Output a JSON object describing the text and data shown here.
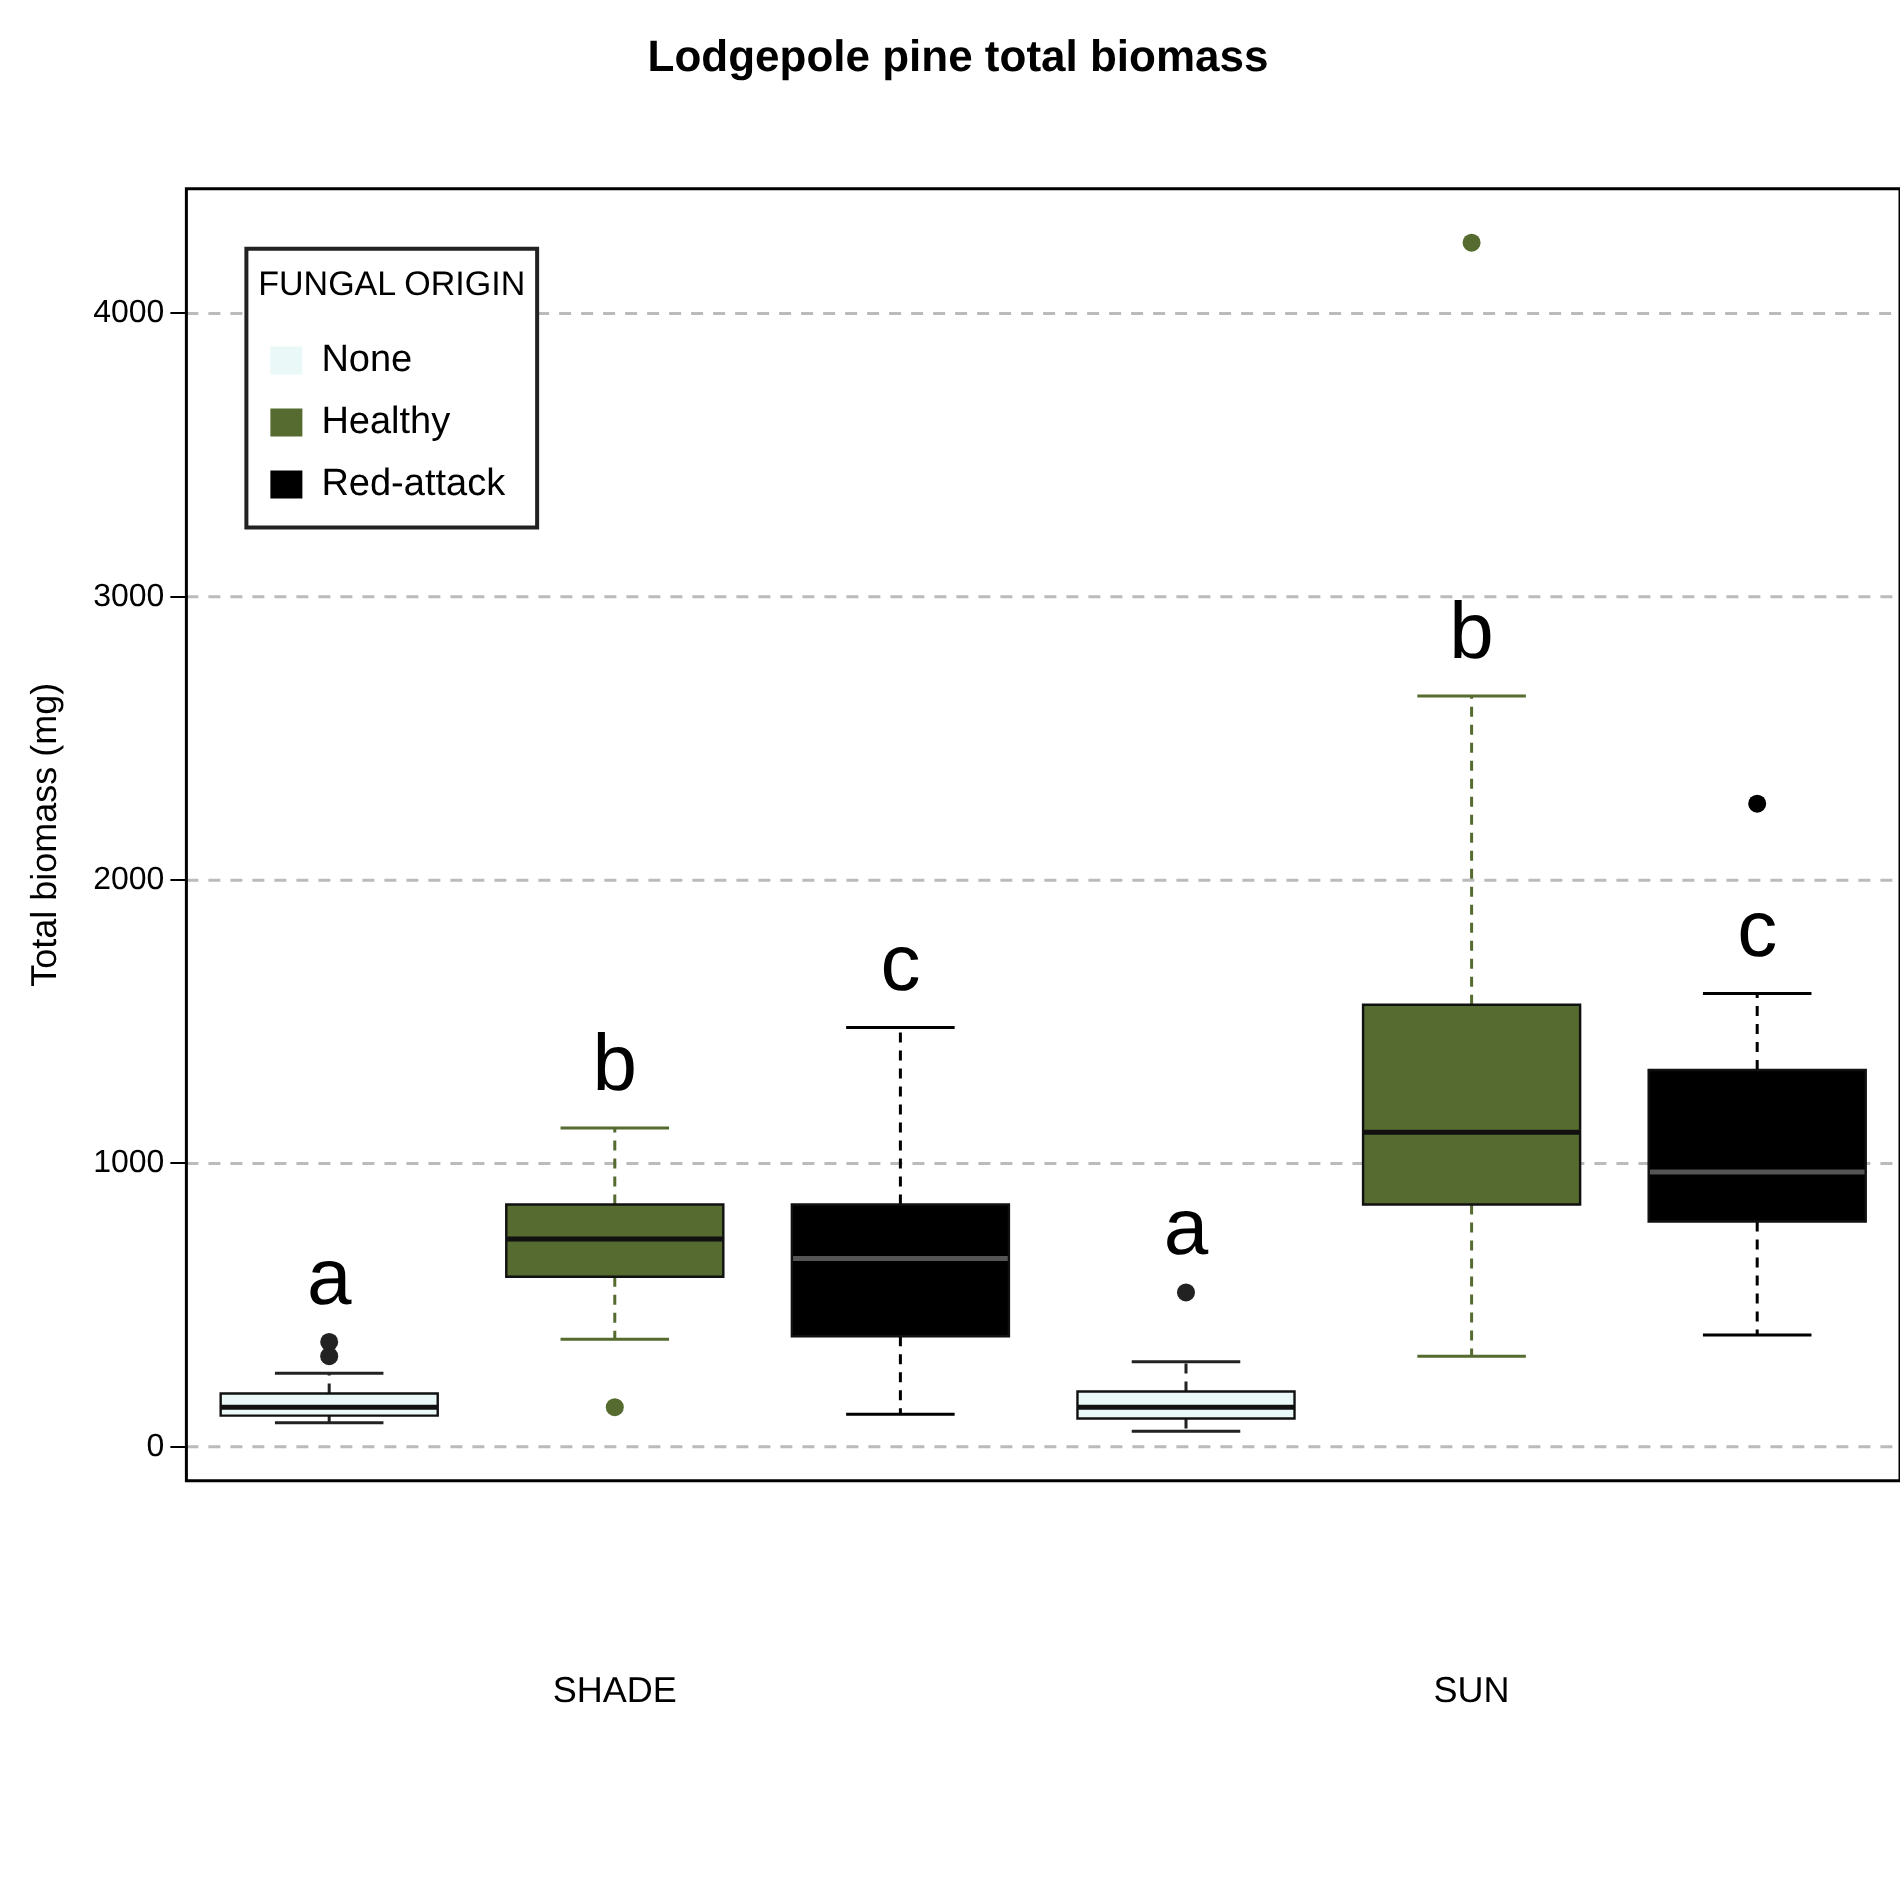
{
  "chart_data": {
    "type": "box",
    "title": "Lodgepole pine total biomass",
    "ylabel": "Total biomass (mg)",
    "legend_title": "FUNGAL ORIGIN",
    "categories": [
      "SHADE",
      "SUN"
    ],
    "series": [
      {
        "name": "None",
        "color": "#eaf8f8",
        "boxes": [
          {
            "low": 85,
            "q1": 110,
            "median": 140,
            "q3": 188,
            "high": 260,
            "outliers": [
              320,
              370
            ]
          },
          {
            "low": 55,
            "q1": 100,
            "median": 140,
            "q3": 195,
            "high": 300,
            "outliers": [
              545
            ]
          }
        ]
      },
      {
        "name": "Healthy",
        "color": "#556b2f",
        "boxes": [
          {
            "low": 380,
            "q1": 600,
            "median": 733,
            "q3": 855,
            "high": 1125,
            "outliers": [
              140
            ]
          },
          {
            "low": 320,
            "q1": 855,
            "median": 1110,
            "q3": 1560,
            "high": 2650,
            "outliers": [
              4250
            ]
          }
        ]
      },
      {
        "name": "Red-attack",
        "color": "#000000",
        "boxes": [
          {
            "low": 115,
            "q1": 390,
            "median": 665,
            "q3": 855,
            "high": 1480
          },
          {
            "low": 395,
            "q1": 795,
            "median": 970,
            "q3": 1330,
            "high": 1600,
            "outliers": [
              2270
            ]
          }
        ]
      }
    ],
    "ylim": [
      -120,
      4440
    ],
    "yticks": [
      0,
      1000,
      2000,
      3000,
      4000
    ],
    "grid": "y",
    "line_style": "dashed",
    "legend": "top left",
    "annotations": [
      "a",
      "b",
      "c",
      "a",
      "b",
      "c"
    ]
  }
}
